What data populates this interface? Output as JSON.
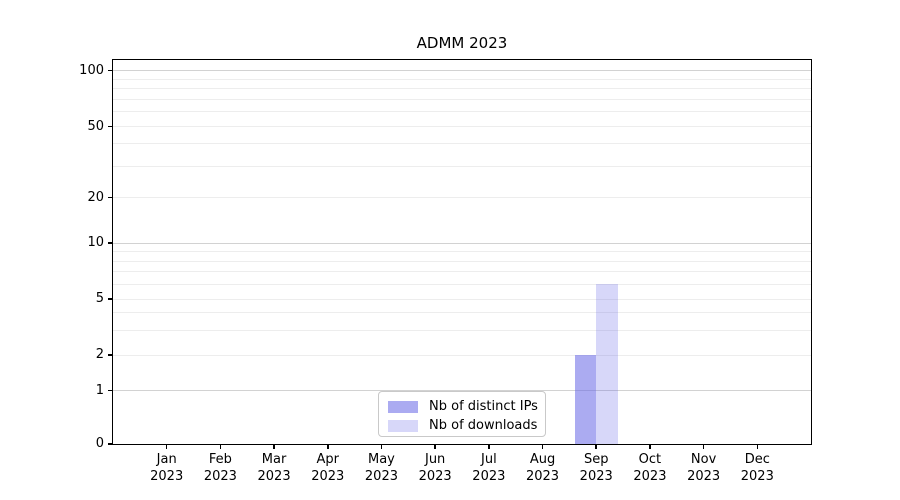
{
  "chart_data": {
    "type": "bar",
    "title": "ADMM 2023",
    "categories": [
      "Jan 2023",
      "Feb 2023",
      "Mar 2023",
      "Apr 2023",
      "May 2023",
      "Jun 2023",
      "Jul 2023",
      "Aug 2023",
      "Sep 2023",
      "Oct 2023",
      "Nov 2023",
      "Dec 2023"
    ],
    "x_tick_months": [
      "Jan",
      "Feb",
      "Mar",
      "Apr",
      "May",
      "Jun",
      "Jul",
      "Aug",
      "Sep",
      "Oct",
      "Nov",
      "Dec"
    ],
    "x_tick_year": "2023",
    "series": [
      {
        "name": "Nb of distinct IPs",
        "color": "#6666e6",
        "alpha": 0.55,
        "values": [
          0,
          0,
          0,
          0,
          0,
          0,
          0,
          0,
          2,
          0,
          0,
          0
        ]
      },
      {
        "name": "Nb of downloads",
        "color": "#6666e6",
        "alpha": 0.26,
        "values": [
          0,
          0,
          0,
          0,
          0,
          0,
          0,
          0,
          6,
          0,
          0,
          0
        ]
      }
    ],
    "y_axis": {
      "scale": "symlog",
      "ticks": [
        0,
        1,
        2,
        5,
        10,
        20,
        50,
        100
      ],
      "decade_ticks": [
        1,
        10,
        100
      ],
      "minor_gridlines": [
        3,
        4,
        6,
        7,
        8,
        9,
        30,
        40,
        60,
        70,
        80,
        90
      ],
      "ylim": [
        0,
        115
      ],
      "grid": true
    },
    "x_axis": {
      "label": "",
      "tick_count": 12
    },
    "legend": {
      "position": "bottom-center"
    },
    "colors": {
      "grid_major": "#d2d2d2",
      "grid_minor": "#ededed",
      "spine": "#000000",
      "text": "#000000",
      "background": "#ffffff"
    }
  }
}
